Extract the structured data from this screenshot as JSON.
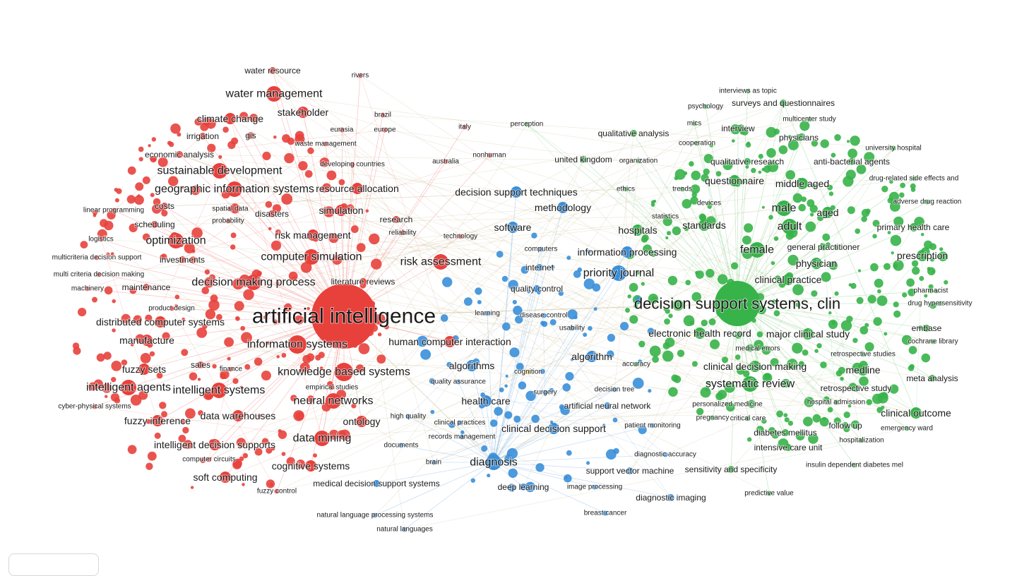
{
  "map": {
    "colors": {
      "red": "#e8413c",
      "green": "#37b349",
      "blue": "#3a8fd9",
      "yellow": "#e6d21c",
      "edge_red": "#f08a87",
      "edge_green": "#8fd18f",
      "edge_blue": "#8ab8e6",
      "edge_mix": "#c6b98a"
    },
    "clusters": [
      {
        "id": "red",
        "color": "#e8413c",
        "hub": "artificial intelligence",
        "terms": [
          {
            "label": "artificial intelligence",
            "size": 10
          },
          {
            "label": "information systems",
            "size": 5
          },
          {
            "label": "knowledge based systems",
            "size": 5
          },
          {
            "label": "decision making process",
            "size": 4
          },
          {
            "label": "computer simulation",
            "size": 4
          },
          {
            "label": "risk assessment",
            "size": 4
          },
          {
            "label": "sustainable development",
            "size": 4
          },
          {
            "label": "geographic information systems",
            "size": 4
          },
          {
            "label": "water management",
            "size": 4
          },
          {
            "label": "optimization",
            "size": 4
          },
          {
            "label": "intelligent systems",
            "size": 4
          },
          {
            "label": "intelligent agents",
            "size": 4
          },
          {
            "label": "data mining",
            "size": 4
          },
          {
            "label": "neural networks",
            "size": 4
          },
          {
            "label": "ontology",
            "size": 3
          },
          {
            "label": "data warehouses",
            "size": 3
          },
          {
            "label": "cognitive systems",
            "size": 3
          },
          {
            "label": "intelligent decision supports",
            "size": 3
          },
          {
            "label": "risk management",
            "size": 3
          },
          {
            "label": "resource allocation",
            "size": 3
          },
          {
            "label": "simulation",
            "size": 3
          },
          {
            "label": "human computer interaction",
            "size": 3
          },
          {
            "label": "manufacture",
            "size": 3
          },
          {
            "label": "fuzzy sets",
            "size": 3
          },
          {
            "label": "fuzzy inference",
            "size": 3
          },
          {
            "label": "soft computing",
            "size": 3
          },
          {
            "label": "maintenance",
            "size": 2
          },
          {
            "label": "climate change",
            "size": 3
          },
          {
            "label": "stakeholder",
            "size": 3
          },
          {
            "label": "distributed computer systems",
            "size": 3
          },
          {
            "label": "water resource",
            "size": 2
          },
          {
            "label": "rivers",
            "size": 1
          },
          {
            "label": "brazil",
            "size": 1
          },
          {
            "label": "europe",
            "size": 1
          },
          {
            "label": "eurasia",
            "size": 1
          },
          {
            "label": "gis",
            "size": 2
          },
          {
            "label": "irrigation",
            "size": 2
          },
          {
            "label": "waste management",
            "size": 1
          },
          {
            "label": "economic analysis",
            "size": 2
          },
          {
            "label": "developing countries",
            "size": 1
          },
          {
            "label": "costs",
            "size": 2
          },
          {
            "label": "spatial data",
            "size": 1
          },
          {
            "label": "disasters",
            "size": 2
          },
          {
            "label": "linear programming",
            "size": 1
          },
          {
            "label": "scheduling",
            "size": 2
          },
          {
            "label": "probability",
            "size": 1
          },
          {
            "label": "research",
            "size": 2
          },
          {
            "label": "reliability",
            "size": 1
          },
          {
            "label": "logistics",
            "size": 1
          },
          {
            "label": "multicriteria decision support",
            "size": 1
          },
          {
            "label": "investments",
            "size": 2
          },
          {
            "label": "multi criteria decision making",
            "size": 1
          },
          {
            "label": "literature reviews",
            "size": 2
          },
          {
            "label": "machinery",
            "size": 1
          },
          {
            "label": "product design",
            "size": 1
          },
          {
            "label": "sales",
            "size": 2
          },
          {
            "label": "finance",
            "size": 1
          },
          {
            "label": "empirical studies",
            "size": 1
          },
          {
            "label": "cyber-physical systems",
            "size": 1
          },
          {
            "label": "computer circuits",
            "size": 1
          },
          {
            "label": "fuzzy control",
            "size": 1
          },
          {
            "label": "italy",
            "size": 1
          },
          {
            "label": "australia",
            "size": 1
          },
          {
            "label": "nonhuman",
            "size": 1
          },
          {
            "label": "technology",
            "size": 1
          }
        ]
      },
      {
        "id": "blue",
        "color": "#3a8fd9",
        "hub": "diagnosis",
        "terms": [
          {
            "label": "decision support techniques",
            "size": 3
          },
          {
            "label": "methodology",
            "size": 3
          },
          {
            "label": "software",
            "size": 3
          },
          {
            "label": "information processing",
            "size": 3
          },
          {
            "label": "priority journal",
            "size": 4
          },
          {
            "label": "internet",
            "size": 2
          },
          {
            "label": "computers",
            "size": 1
          },
          {
            "label": "quality control",
            "size": 2
          },
          {
            "label": "learning",
            "size": 1
          },
          {
            "label": "disease control",
            "size": 1
          },
          {
            "label": "usability",
            "size": 1
          },
          {
            "label": "algorithms",
            "size": 3
          },
          {
            "label": "algorithm",
            "size": 3
          },
          {
            "label": "quality assurance",
            "size": 1
          },
          {
            "label": "surgery",
            "size": 1
          },
          {
            "label": "health care",
            "size": 3
          },
          {
            "label": "artificial neural network",
            "size": 2
          },
          {
            "label": "decision tree",
            "size": 1
          },
          {
            "label": "clinical decision support",
            "size": 3
          },
          {
            "label": "patient monitoring",
            "size": 1
          },
          {
            "label": "clinical practices",
            "size": 1
          },
          {
            "label": "records management",
            "size": 1
          },
          {
            "label": "high quality",
            "size": 1
          },
          {
            "label": "documents",
            "size": 1
          },
          {
            "label": "diagnosis",
            "size": 4
          },
          {
            "label": "diagnostic accuracy",
            "size": 1
          },
          {
            "label": "brain",
            "size": 1
          },
          {
            "label": "support vector machine",
            "size": 2
          },
          {
            "label": "medical decision support systems",
            "size": 2
          },
          {
            "label": "deep learning",
            "size": 2
          },
          {
            "label": "image processing",
            "size": 1
          },
          {
            "label": "diagnostic imaging",
            "size": 2
          },
          {
            "label": "natural language processing systems",
            "size": 1
          },
          {
            "label": "natural languages",
            "size": 1
          },
          {
            "label": "breast cancer",
            "size": 1
          }
        ]
      },
      {
        "id": "green",
        "color": "#37b349",
        "hub": "decision support systems, clinical",
        "terms": [
          {
            "label": "decision support systems, clinical",
            "size": 9
          },
          {
            "label": "interviews as topic",
            "size": 1
          },
          {
            "label": "psychology",
            "size": 1
          },
          {
            "label": "surveys and questionnaires",
            "size": 2
          },
          {
            "label": "mics",
            "size": 1
          },
          {
            "label": "multicenter study",
            "size": 1
          },
          {
            "label": "interview",
            "size": 2
          },
          {
            "label": "qualitative analysis",
            "size": 2
          },
          {
            "label": "physicians",
            "size": 2
          },
          {
            "label": "cooperation",
            "size": 1
          },
          {
            "label": "university hospital",
            "size": 1
          },
          {
            "label": "united kingdom",
            "size": 2
          },
          {
            "label": "organization",
            "size": 1
          },
          {
            "label": "qualitative research",
            "size": 2
          },
          {
            "label": "anti-bacterial agents",
            "size": 2
          },
          {
            "label": "drug-related side effects and",
            "size": 1
          },
          {
            "label": "questionnaire",
            "size": 3
          },
          {
            "label": "middle aged",
            "size": 3
          },
          {
            "label": "ethics",
            "size": 1
          },
          {
            "label": "trends",
            "size": 1
          },
          {
            "label": "devices",
            "size": 1
          },
          {
            "label": "adverse drug reaction",
            "size": 1
          },
          {
            "label": "male",
            "size": 4
          },
          {
            "label": "aged",
            "size": 3
          },
          {
            "label": "statistics",
            "size": 1
          },
          {
            "label": "standards",
            "size": 3
          },
          {
            "label": "hospitals",
            "size": 3
          },
          {
            "label": "adult",
            "size": 4
          },
          {
            "label": "primary health care",
            "size": 2
          },
          {
            "label": "female",
            "size": 4
          },
          {
            "label": "general practitioner",
            "size": 2
          },
          {
            "label": "prescription",
            "size": 3
          },
          {
            "label": "physician",
            "size": 3
          },
          {
            "label": "clinical practice",
            "size": 3
          },
          {
            "label": "pharmacist",
            "size": 1
          },
          {
            "label": "drug hypersensitivity",
            "size": 1
          },
          {
            "label": "electronic health record",
            "size": 3
          },
          {
            "label": "major clinical study",
            "size": 3
          },
          {
            "label": "embase",
            "size": 2
          },
          {
            "label": "cochrane library",
            "size": 1
          },
          {
            "label": "medical errors",
            "size": 1
          },
          {
            "label": "retrospective studies",
            "size": 1
          },
          {
            "label": "accuracy",
            "size": 1
          },
          {
            "label": "clinical decision making",
            "size": 3
          },
          {
            "label": "medline",
            "size": 3
          },
          {
            "label": "systematic review",
            "size": 4
          },
          {
            "label": "meta analysis",
            "size": 2
          },
          {
            "label": "retrospective study",
            "size": 2
          },
          {
            "label": "personalized medicine",
            "size": 1
          },
          {
            "label": "hospital admission",
            "size": 1
          },
          {
            "label": "clinical outcome",
            "size": 3
          },
          {
            "label": "pregnancy",
            "size": 1
          },
          {
            "label": "critical care",
            "size": 1
          },
          {
            "label": "follow up",
            "size": 2
          },
          {
            "label": "emergency ward",
            "size": 1
          },
          {
            "label": "diabetes mellitus",
            "size": 2
          },
          {
            "label": "hospitalization",
            "size": 1
          },
          {
            "label": "intensive care unit",
            "size": 2
          },
          {
            "label": "sensitivity and specificity",
            "size": 2
          },
          {
            "label": "insulin dependent diabetes mel",
            "size": 1
          },
          {
            "label": "predictive value",
            "size": 1
          },
          {
            "label": "perception",
            "size": 1
          }
        ]
      },
      {
        "id": "yellow",
        "color": "#e6d21c",
        "hub": "cognition",
        "terms": [
          {
            "label": "cognition",
            "size": 1
          }
        ]
      }
    ]
  }
}
